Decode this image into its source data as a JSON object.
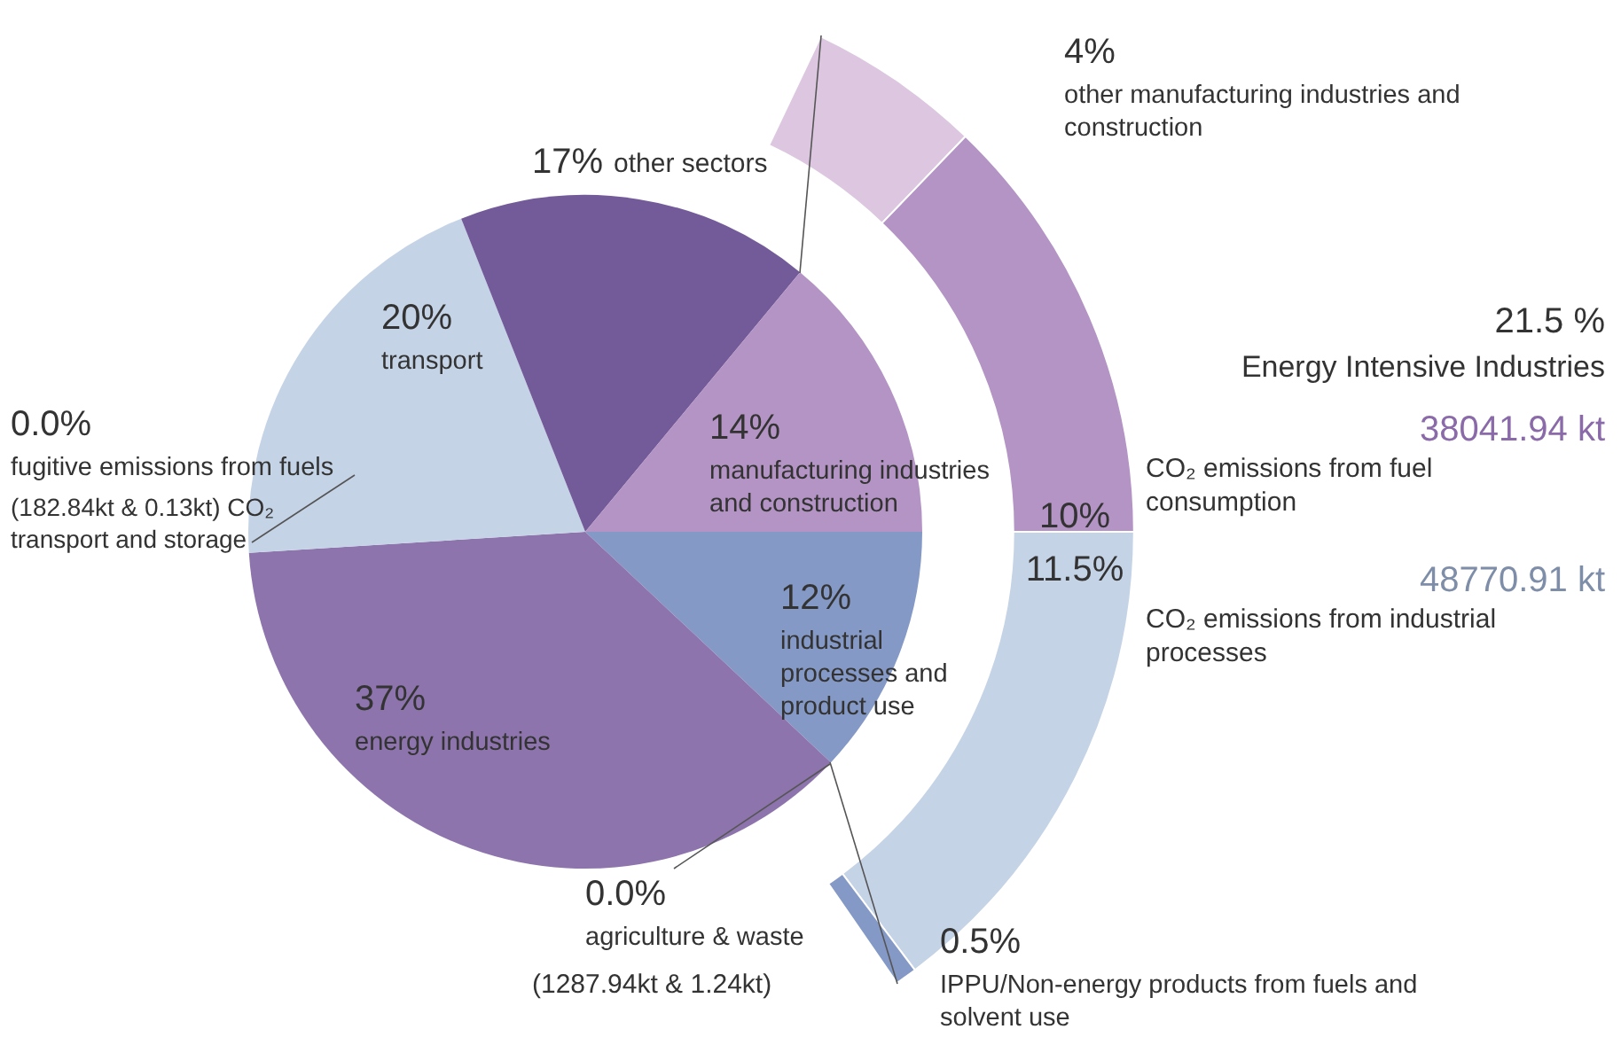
{
  "chart_data": [
    {
      "type": "pie",
      "categories": [
        "industrial processes and product use",
        "agriculture & waste",
        "energy industries",
        "fugitive emissions from fuels",
        "transport",
        "other sectors",
        "manufacturing industries and construction"
      ],
      "values": [
        12,
        0.0,
        37,
        0.0,
        20,
        17,
        14
      ],
      "value_labels": [
        "12%",
        "0.0%",
        "37%",
        "0.0%",
        "20%",
        "17%",
        "14%"
      ],
      "colors": [
        "#8499c6",
        "#6b5a8e",
        "#8d74ad",
        "#6b5a8e",
        "#c5d3e6",
        "#735b99",
        "#b394c4"
      ],
      "annotations": [
        "(182.84kt & 0.13kt) CO₂ transport and storage",
        "(1287.94kt & 1.24kt)"
      ]
    },
    {
      "type": "donut",
      "categories": [
        "other manufacturing industries and construction",
        "CO₂ emissions from fuel consumption",
        "CO₂ emissions from industrial processes",
        "IPPU/Non-energy products from fuels and solvent use"
      ],
      "values": [
        4,
        10,
        11.5,
        0.5
      ],
      "value_labels": [
        "4%",
        "10%",
        "11.5%",
        "0.5%"
      ],
      "colors": [
        "#dcc6e0",
        "#b394c4",
        "#c5d3e6",
        "#8499c6"
      ],
      "annotations": [
        "21.5 %",
        "Energy Intensive Industries",
        "38041.94 kt",
        "48770.91 kt"
      ]
    }
  ]
}
